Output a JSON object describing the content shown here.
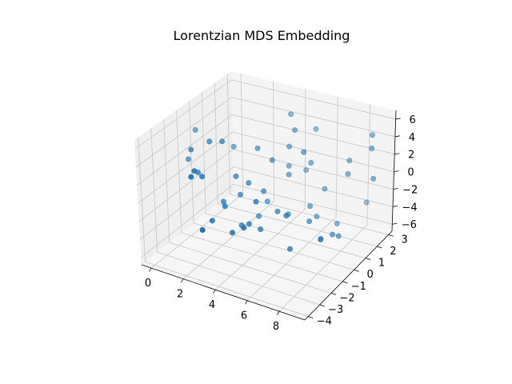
{
  "chart_data": {
    "type": "scatter",
    "title": "Lorentzian MDS Embedding",
    "xlabel": "",
    "ylabel": "",
    "zlabel": "",
    "xlim": [
      -0.6,
      9.6
    ],
    "ylim": [
      -4.3,
      3.3
    ],
    "zlim": [
      -6.8,
      7.0
    ],
    "xticks": [
      0,
      2,
      4,
      6,
      8
    ],
    "yticks": [
      -4,
      -3,
      -2,
      -1,
      0,
      1,
      2,
      3
    ],
    "zticks": [
      -6,
      -4,
      -2,
      0,
      2,
      4,
      6
    ],
    "grid": true,
    "marker_color": "#1f77b4",
    "points": [
      {
        "x": 4.6,
        "y": -2.6,
        "z": -1.9
      },
      {
        "x": 3.1,
        "y": -4.0,
        "z": -1.4
      },
      {
        "x": 8.9,
        "y": 2.5,
        "z": -0.2
      },
      {
        "x": 8.9,
        "y": 2.3,
        "z": 3.4
      },
      {
        "x": 7.6,
        "y": 2.1,
        "z": 0.2
      },
      {
        "x": 0.2,
        "y": -0.6,
        "z": 4.7
      },
      {
        "x": 2.0,
        "y": 0.1,
        "z": 2.9
      },
      {
        "x": 8.7,
        "y": 2.6,
        "z": 4.5
      },
      {
        "x": 5.5,
        "y": 2.2,
        "z": 4.2
      },
      {
        "x": 6.1,
        "y": 1.5,
        "z": -4.5
      },
      {
        "x": 5.9,
        "y": 1.2,
        "z": -3.1
      },
      {
        "x": 4.3,
        "y": 0.2,
        "z": 2.3
      },
      {
        "x": 1.6,
        "y": -1.3,
        "z": 4.7
      },
      {
        "x": 8.0,
        "y": 3.2,
        "z": -4.1
      },
      {
        "x": 0.6,
        "y": -1.5,
        "z": 3.6
      },
      {
        "x": 7.1,
        "y": 1.9,
        "z": -5.3
      },
      {
        "x": 2.1,
        "y": -3.2,
        "z": 3.6
      },
      {
        "x": 4.8,
        "y": 1.4,
        "z": 4.6
      },
      {
        "x": 4.5,
        "y": -1.1,
        "z": -3.7
      },
      {
        "x": 1.3,
        "y": -1.9,
        "z": 1.8
      },
      {
        "x": 5.2,
        "y": 1.8,
        "z": -0.1
      },
      {
        "x": 7.1,
        "y": 0.5,
        "z": -5.3
      },
      {
        "x": 4.2,
        "y": -0.4,
        "z": -0.5
      },
      {
        "x": 2.8,
        "y": -0.8,
        "z": 0.9
      },
      {
        "x": 6.2,
        "y": -0.9,
        "z": -5.2
      },
      {
        "x": 2.6,
        "y": -1.6,
        "z": -1.1
      },
      {
        "x": 3.5,
        "y": -0.7,
        "z": 0.4
      },
      {
        "x": 2.2,
        "y": -3.6,
        "z": 3.4
      },
      {
        "x": 4.4,
        "y": 1.6,
        "z": 6.0
      },
      {
        "x": 6.8,
        "y": 0.9,
        "z": -6.0
      },
      {
        "x": 4.1,
        "y": -1.5,
        "z": -2.9
      },
      {
        "x": 5.6,
        "y": -0.4,
        "z": -2.5
      },
      {
        "x": 3.2,
        "y": -1.0,
        "z": -0.7
      },
      {
        "x": 7.4,
        "y": 1.1,
        "z": -5.4
      },
      {
        "x": 3.9,
        "y": 0.3,
        "z": -2.5
      },
      {
        "x": 2.1,
        "y": -2.6,
        "z": 2.4
      },
      {
        "x": 6.3,
        "y": 0.6,
        "z": -3.9
      },
      {
        "x": 4.9,
        "y": -0.2,
        "z": -2.6
      },
      {
        "x": 4.6,
        "y": 1.2,
        "z": 2.9
      },
      {
        "x": 7.5,
        "y": 1.5,
        "z": -6.0
      },
      {
        "x": 7.6,
        "y": 2.2,
        "z": 1.6
      },
      {
        "x": 3.0,
        "y": -2.0,
        "z": -1.0
      },
      {
        "x": 3.8,
        "y": -2.5,
        "z": -2.9
      },
      {
        "x": 5.2,
        "y": 0.3,
        "z": -3.3
      },
      {
        "x": 2.3,
        "y": -1.2,
        "z": 4.9
      },
      {
        "x": 4.8,
        "y": 0.9,
        "z": 0.2
      },
      {
        "x": 3.4,
        "y": -1.2,
        "z": -3.7
      },
      {
        "x": 2.8,
        "y": -2.8,
        "z": -1.8
      },
      {
        "x": 3.8,
        "y": -0.3,
        "z": -3.5
      },
      {
        "x": 6.3,
        "y": 1.9,
        "z": -1.8
      },
      {
        "x": 5.8,
        "y": 1.4,
        "z": 1.4
      },
      {
        "x": 4.4,
        "y": -1.3,
        "z": -0.6
      },
      {
        "x": 3.4,
        "y": 0.2,
        "z": 3.2
      },
      {
        "x": 0.1,
        "y": -1.1,
        "z": 1.9
      },
      {
        "x": 5.8,
        "y": 0.8,
        "z": 3.2
      },
      {
        "x": 4.5,
        "y": 1.3,
        "z": 0.6
      }
    ]
  }
}
